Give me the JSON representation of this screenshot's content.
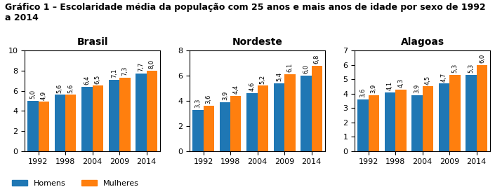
{
  "title": "Gráfico 1 – Escolaridade média da população com 25 anos e mais anos de idade por sexo de 1992\na 2014",
  "legend": "lower left",
  "chart_data": [
    {
      "type": "bar",
      "title": "Brasil",
      "categories": [
        "1992",
        "1998",
        "2004",
        "2009",
        "2014"
      ],
      "series": [
        {
          "name": "Homens",
          "values": [
            5.0,
            5.6,
            6.4,
            7.1,
            7.7
          ],
          "value_labels": [
            "5,0",
            "5,6",
            "6,4",
            "7,1",
            "7,7"
          ]
        },
        {
          "name": "Mulheres",
          "values": [
            4.9,
            5.6,
            6.5,
            7.3,
            8.0
          ],
          "value_labels": [
            "4,9",
            "5,6",
            "6,5",
            "7,3",
            "8,0"
          ]
        }
      ],
      "ylim": [
        0,
        10
      ],
      "yticks": [
        0,
        2,
        4,
        6,
        8,
        10
      ],
      "data_labels": true
    },
    {
      "type": "bar",
      "title": "Nordeste",
      "categories": [
        "1992",
        "1998",
        "2004",
        "2009",
        "2014"
      ],
      "series": [
        {
          "name": "Homens",
          "values": [
            3.3,
            3.9,
            4.6,
            5.4,
            6.0
          ],
          "value_labels": [
            "3,3",
            "3,9",
            "4,6",
            "5,4",
            "6,0"
          ]
        },
        {
          "name": "Mulheres",
          "values": [
            3.6,
            4.4,
            5.2,
            6.1,
            6.8
          ],
          "value_labels": [
            "3,6",
            "4,4",
            "5,2",
            "6,1",
            "6,8"
          ]
        }
      ],
      "ylim": [
        0,
        8
      ],
      "yticks": [
        0,
        2,
        4,
        6,
        8
      ],
      "data_labels": true
    },
    {
      "type": "bar",
      "title": "Alagoas",
      "categories": [
        "1992",
        "1998",
        "2004",
        "2009",
        "2014"
      ],
      "series": [
        {
          "name": "Homens",
          "values": [
            3.6,
            4.1,
            3.9,
            4.7,
            5.3
          ],
          "value_labels": [
            "3,6",
            "4,1",
            "3,9",
            "4,7",
            "5,3"
          ]
        },
        {
          "name": "Mulheres",
          "values": [
            3.9,
            4.3,
            4.5,
            5.3,
            6.0
          ],
          "value_labels": [
            "3,9",
            "4,3",
            "4,5",
            "5,3",
            "6,0"
          ]
        }
      ],
      "ylim": [
        0,
        7
      ],
      "yticks": [
        0,
        1,
        2,
        3,
        4,
        5,
        6,
        7
      ],
      "data_labels": true
    }
  ]
}
